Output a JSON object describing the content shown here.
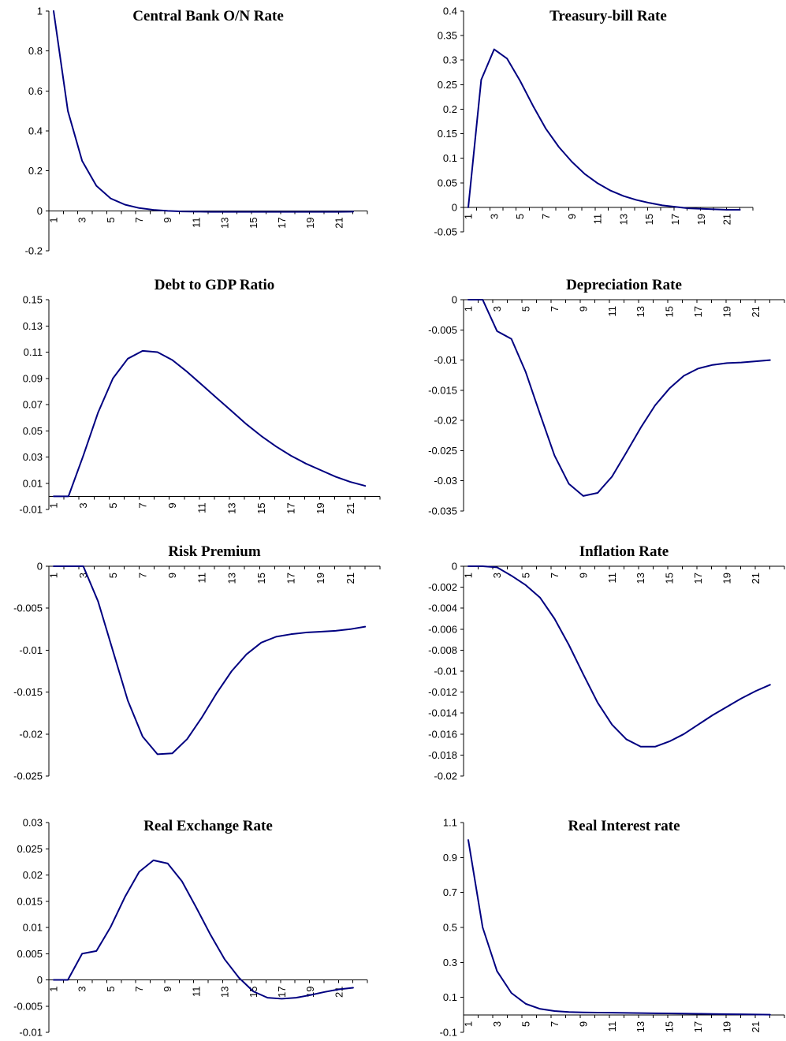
{
  "line_color": "#000080",
  "chart_data": [
    {
      "type": "line",
      "title": "Central Bank O/N Rate",
      "x": [
        1,
        2,
        3,
        4,
        5,
        6,
        7,
        8,
        9,
        10,
        11,
        12,
        13,
        14,
        15,
        16,
        17,
        18,
        19,
        20,
        21,
        22
      ],
      "xticks": [
        1,
        3,
        5,
        7,
        9,
        11,
        13,
        15,
        17,
        19,
        21
      ],
      "yticks": [
        "1",
        "0.8",
        "0.6",
        "0.4",
        "0.2",
        "0",
        "-0.2"
      ],
      "ylim": [
        -0.2,
        1
      ],
      "series": [
        {
          "values": [
            1,
            0.5,
            0.25,
            0.125,
            0.062,
            0.031,
            0.014,
            0.005,
            0.0,
            -0.003,
            -0.004,
            -0.005,
            -0.005,
            -0.005,
            -0.005,
            -0.005,
            -0.005,
            -0.005,
            -0.005,
            -0.005,
            -0.005,
            -0.004
          ]
        }
      ]
    },
    {
      "type": "line",
      "title": "Treasury-bill Rate",
      "x": [
        1,
        2,
        3,
        4,
        5,
        6,
        7,
        8,
        9,
        10,
        11,
        12,
        13,
        14,
        15,
        16,
        17,
        18,
        19,
        20,
        21,
        22
      ],
      "xticks": [
        1,
        3,
        5,
        7,
        9,
        11,
        13,
        15,
        17,
        19,
        21
      ],
      "yticks": [
        "0.4",
        "0.35",
        "0.3",
        "0.25",
        "0.2",
        "0.15",
        "0.1",
        "0.05",
        "0",
        "-0.05"
      ],
      "ylim": [
        -0.05,
        0.4
      ],
      "series": [
        {
          "values": [
            0,
            0.26,
            0.322,
            0.303,
            0.258,
            0.207,
            0.16,
            0.123,
            0.093,
            0.068,
            0.049,
            0.034,
            0.023,
            0.015,
            0.009,
            0.004,
            0.001,
            -0.002,
            -0.003,
            -0.004,
            -0.005,
            -0.005
          ]
        }
      ]
    },
    {
      "type": "line",
      "title": "Debt to GDP Ratio",
      "x": [
        1,
        2,
        3,
        4,
        5,
        6,
        7,
        8,
        9,
        10,
        11,
        12,
        13,
        14,
        15,
        16,
        17,
        18,
        19,
        20,
        21,
        22
      ],
      "xticks": [
        1,
        3,
        5,
        7,
        9,
        11,
        13,
        15,
        17,
        19,
        21
      ],
      "yticks": [
        "0.15",
        "0.13",
        "0.11",
        "0.09",
        "0.07",
        "0.05",
        "0.03",
        "0.01",
        "-0.01"
      ],
      "ylim": [
        -0.01,
        0.15
      ],
      "series": [
        {
          "values": [
            0,
            0,
            0.031,
            0.064,
            0.09,
            0.105,
            0.111,
            0.11,
            0.104,
            0.095,
            0.085,
            0.075,
            0.065,
            0.055,
            0.046,
            0.038,
            0.031,
            0.025,
            0.02,
            0.015,
            0.011,
            0.008
          ]
        }
      ]
    },
    {
      "type": "line",
      "title": "Depreciation Rate",
      "x": [
        1,
        2,
        3,
        4,
        5,
        6,
        7,
        8,
        9,
        10,
        11,
        12,
        13,
        14,
        15,
        16,
        17,
        18,
        19,
        20,
        21,
        22
      ],
      "xticks": [
        1,
        3,
        5,
        7,
        9,
        11,
        13,
        15,
        17,
        19,
        21
      ],
      "yticks": [
        "0",
        "-0.005",
        "-0.01",
        "-0.015",
        "-0.02",
        "-0.025",
        "-0.03",
        "-0.035"
      ],
      "ylim": [
        -0.035,
        0
      ],
      "series": [
        {
          "values": [
            0,
            0,
            -0.0052,
            -0.0065,
            -0.012,
            -0.019,
            -0.0258,
            -0.0305,
            -0.0325,
            -0.032,
            -0.0293,
            -0.0253,
            -0.0212,
            -0.0175,
            -0.0147,
            -0.0126,
            -0.0114,
            -0.0108,
            -0.0105,
            -0.0104,
            -0.0102,
            -0.01
          ]
        }
      ]
    },
    {
      "type": "line",
      "title": "Risk Premium",
      "x": [
        1,
        2,
        3,
        4,
        5,
        6,
        7,
        8,
        9,
        10,
        11,
        12,
        13,
        14,
        15,
        16,
        17,
        18,
        19,
        20,
        21,
        22
      ],
      "xticks": [
        1,
        3,
        5,
        7,
        9,
        11,
        13,
        15,
        17,
        19,
        21
      ],
      "yticks": [
        "0",
        "-0.005",
        "-0.01",
        "-0.015",
        "-0.02",
        "-0.025"
      ],
      "ylim": [
        -0.025,
        0
      ],
      "series": [
        {
          "values": [
            0,
            0,
            0,
            -0.0042,
            -0.0101,
            -0.016,
            -0.0203,
            -0.0224,
            -0.0223,
            -0.0206,
            -0.018,
            -0.0151,
            -0.0125,
            -0.0105,
            -0.0091,
            -0.0084,
            -0.0081,
            -0.0079,
            -0.0078,
            -0.0077,
            -0.0075,
            -0.0072
          ]
        }
      ]
    },
    {
      "type": "line",
      "title": "Inflation Rate",
      "x": [
        1,
        2,
        3,
        4,
        5,
        6,
        7,
        8,
        9,
        10,
        11,
        12,
        13,
        14,
        15,
        16,
        17,
        18,
        19,
        20,
        21,
        22
      ],
      "xticks": [
        1,
        3,
        5,
        7,
        9,
        11,
        13,
        15,
        17,
        19,
        21
      ],
      "yticks": [
        "0",
        "-0.002",
        "-0.004",
        "-0.006",
        "-0.008",
        "-0.01",
        "-0.012",
        "-0.014",
        "-0.016",
        "-0.018",
        "-0.02"
      ],
      "ylim": [
        -0.02,
        0
      ],
      "series": [
        {
          "values": [
            0,
            0,
            -0.0001,
            -0.0009,
            -0.0018,
            -0.003,
            -0.005,
            -0.0075,
            -0.0103,
            -0.013,
            -0.0151,
            -0.0165,
            -0.0172,
            -0.0172,
            -0.0167,
            -0.016,
            -0.0151,
            -0.0142,
            -0.0134,
            -0.0126,
            -0.0119,
            -0.0113
          ]
        }
      ]
    },
    {
      "type": "line",
      "title": "Real Exchange Rate",
      "x": [
        1,
        2,
        3,
        4,
        5,
        6,
        7,
        8,
        9,
        10,
        11,
        12,
        13,
        14,
        15,
        16,
        17,
        18,
        19,
        20,
        21,
        22
      ],
      "xticks": [
        1,
        3,
        5,
        7,
        9,
        11,
        13,
        15,
        17,
        19,
        21
      ],
      "yticks": [
        "0.03",
        "0.025",
        "0.02",
        "0.015",
        "0.01",
        "0.005",
        "0",
        "-0.005",
        "-0.01"
      ],
      "ylim": [
        -0.01,
        0.03
      ],
      "series": [
        {
          "values": [
            0,
            0,
            0.005,
            0.0055,
            0.0101,
            0.0158,
            0.0206,
            0.0228,
            0.0222,
            0.0188,
            0.0138,
            0.0086,
            0.0039,
            0.0004,
            -0.0022,
            -0.0034,
            -0.0036,
            -0.0034,
            -0.0029,
            -0.0023,
            -0.0018,
            -0.0015
          ]
        }
      ]
    },
    {
      "type": "line",
      "title": "Real Interest rate",
      "x": [
        1,
        2,
        3,
        4,
        5,
        6,
        7,
        8,
        9,
        10,
        11,
        12,
        13,
        14,
        15,
        16,
        17,
        18,
        19,
        20,
        21,
        22
      ],
      "xticks": [
        1,
        3,
        5,
        7,
        9,
        11,
        13,
        15,
        17,
        19,
        21
      ],
      "yticks": [
        "1.1",
        "0.9",
        "0.7",
        "0.5",
        "0.3",
        "0.1",
        "-0.1"
      ],
      "ylim": [
        -0.1,
        1.1
      ],
      "series": [
        {
          "values": [
            1,
            0.5,
            0.25,
            0.125,
            0.063,
            0.034,
            0.022,
            0.016,
            0.014,
            0.013,
            0.012,
            0.011,
            0.01,
            0.009,
            0.008,
            0.007,
            0.006,
            0.005,
            0.004,
            0.003,
            0.002,
            0.001
          ]
        }
      ]
    }
  ]
}
